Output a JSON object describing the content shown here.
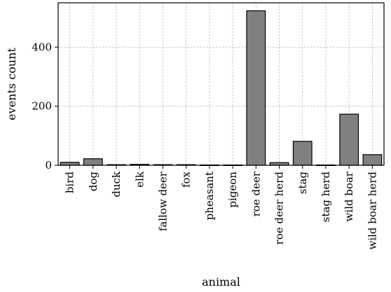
{
  "chart_data": {
    "type": "bar",
    "categories": [
      "bird",
      "dog",
      "duck",
      "elk",
      "fallow deer",
      "fox",
      "pheasant",
      "pigeon",
      "roe deer",
      "roe deer herd",
      "stag",
      "stag herd",
      "wild boar",
      "wild boar herd"
    ],
    "values": [
      10,
      22,
      2,
      3,
      2,
      2,
      1,
      1,
      523,
      9,
      81,
      1,
      173,
      36
    ],
    "xlabel": "animal",
    "ylabel": "events count",
    "ylim": [
      0,
      550
    ],
    "yticks": [
      0,
      200,
      400
    ],
    "grid": true,
    "bar_color": "#808080",
    "edge_color": "#000000"
  }
}
